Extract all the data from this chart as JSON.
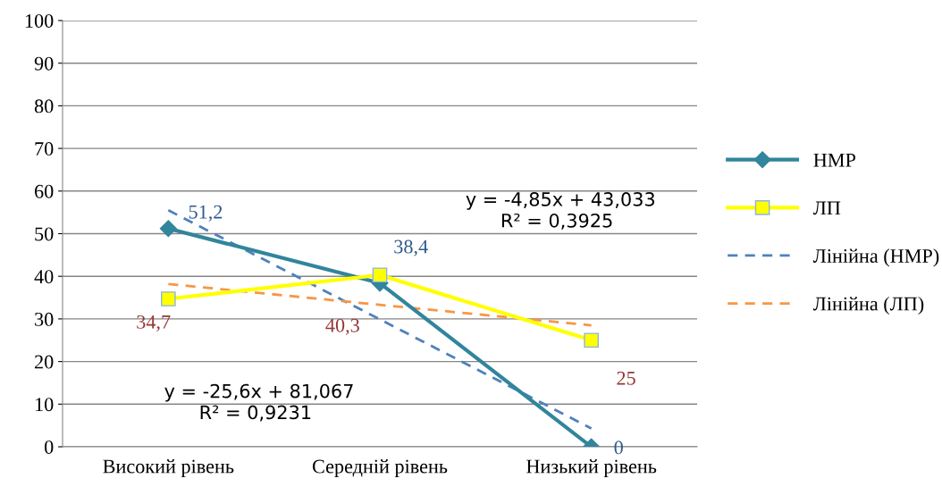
{
  "chart_data": {
    "type": "line",
    "categories": [
      "Високий рівень",
      "Середній рівень",
      "Низький рівень"
    ],
    "series": [
      {
        "name": "НМР",
        "color": "#31859c",
        "values": [
          51.2,
          38.4,
          0
        ],
        "marker": "diamond",
        "line_style": "solid",
        "value_labels": [
          "51,2",
          "38,4",
          "0"
        ]
      },
      {
        "name": "ЛП",
        "color": "#ffff00",
        "values": [
          34.7,
          40.3,
          25
        ],
        "marker": "square",
        "line_style": "solid",
        "value_labels": [
          "34,7",
          "40,3",
          "25"
        ]
      },
      {
        "name": "Лінійна (НМР)",
        "color": "#4f81bd",
        "values": [
          55.5,
          29.9,
          4.3
        ],
        "marker": "none",
        "line_style": "dashed"
      },
      {
        "name": "Лінійна (ЛП)",
        "color": "#f79646",
        "values": [
          38.2,
          33.3,
          28.5
        ],
        "marker": "none",
        "line_style": "dashed"
      }
    ],
    "ylim": [
      0,
      100
    ],
    "yticks": [
      0,
      10,
      20,
      30,
      40,
      50,
      60,
      70,
      80,
      90,
      100
    ],
    "grid": "y",
    "legend": "right",
    "annotations": [
      "y = -25,6x + 81,067",
      "R² = 0,9231",
      "y = -4,85x + 43,033",
      "R² = 0,3925"
    ]
  }
}
